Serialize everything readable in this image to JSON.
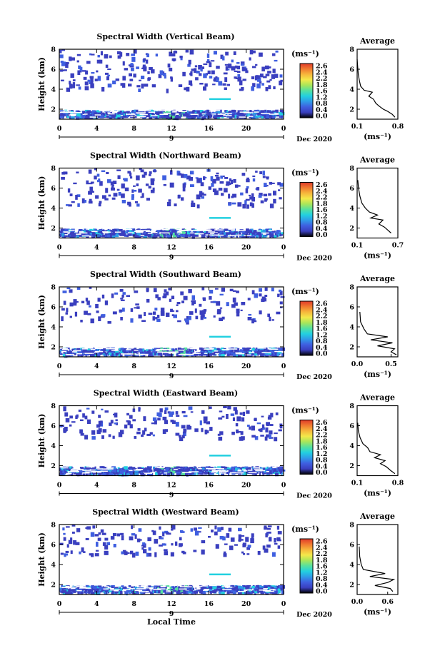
{
  "figure": {
    "xlabel": "Local Time",
    "date_day": "9",
    "date_label": "Dec 2020",
    "unit_label": "(ms⁻¹)",
    "avg_title": "Average",
    "ylabel": "Height (km)"
  },
  "colorbar": {
    "ticks": [
      "2.6",
      "2.4",
      "2.2",
      "1.8",
      "1.6",
      "1.2",
      "0.8",
      "0.4",
      "0.0"
    ],
    "range": [
      0.0,
      2.8
    ],
    "colors": [
      "#000000",
      "#3a3fbf",
      "#3f5fe0",
      "#2f9be8",
      "#22d0e0",
      "#55e0a0",
      "#a8e65a",
      "#f3e94a",
      "#f6b73c",
      "#f07a30",
      "#e03a2a"
    ]
  },
  "chart_data": [
    {
      "type": "heatmap",
      "title": "Spectral Width (Vertical Beam)",
      "xlabel": "Local Time",
      "ylabel": "Height (km)",
      "x_ticks": [
        "0",
        "4",
        "8",
        "12",
        "16",
        "20",
        "0"
      ],
      "xlim": [
        0,
        24
      ],
      "y_ticks": [
        "2",
        "4",
        "6",
        "8"
      ],
      "ylim": [
        1,
        8
      ],
      "avg_profile": {
        "title": "Average",
        "xlabel": "(ms⁻¹)",
        "x_ticks": [
          "0.1",
          "0.8"
        ],
        "xlim": [
          0.1,
          0.8
        ],
        "y_ticks": [
          "2",
          "4",
          "6",
          "8"
        ],
        "ylim": [
          1,
          8
        ],
        "points": [
          [
            0.75,
            1.2
          ],
          [
            0.7,
            1.5
          ],
          [
            0.62,
            1.8
          ],
          [
            0.55,
            2.0
          ],
          [
            0.48,
            2.3
          ],
          [
            0.42,
            2.6
          ],
          [
            0.38,
            3.0
          ],
          [
            0.3,
            3.3
          ],
          [
            0.36,
            3.7
          ],
          [
            0.22,
            3.9
          ],
          [
            0.16,
            4.3
          ],
          [
            0.14,
            4.8
          ],
          [
            0.12,
            5.5
          ],
          [
            0.11,
            6.2
          ],
          [
            0.1,
            7.0
          ]
        ]
      }
    },
    {
      "type": "heatmap",
      "title": "Spectral Width (Northward Beam)",
      "xlabel": "Local Time",
      "ylabel": "Height (km)",
      "x_ticks": [
        "0",
        "4",
        "8",
        "12",
        "16",
        "20",
        "0"
      ],
      "xlim": [
        0,
        24
      ],
      "y_ticks": [
        "2",
        "4",
        "6",
        "8"
      ],
      "ylim": [
        1,
        8
      ],
      "avg_profile": {
        "title": "Average",
        "xlabel": "(ms⁻¹)",
        "x_ticks": [
          "0.1",
          "0.7"
        ],
        "xlim": [
          0.1,
          0.7
        ],
        "y_ticks": [
          "2",
          "4",
          "6",
          "8"
        ],
        "ylim": [
          1,
          8
        ],
        "points": [
          [
            0.6,
            1.5
          ],
          [
            0.55,
            1.8
          ],
          [
            0.5,
            2.1
          ],
          [
            0.42,
            2.4
          ],
          [
            0.48,
            2.8
          ],
          [
            0.3,
            3.0
          ],
          [
            0.4,
            3.3
          ],
          [
            0.28,
            3.6
          ],
          [
            0.22,
            4.0
          ],
          [
            0.17,
            4.5
          ],
          [
            0.14,
            5.2
          ],
          [
            0.12,
            6.0
          ],
          [
            0.11,
            6.8
          ]
        ]
      }
    },
    {
      "type": "heatmap",
      "title": "Spectral Width (Southward Beam)",
      "xlabel": "Local Time",
      "ylabel": "Height (km)",
      "x_ticks": [
        "0",
        "4",
        "8",
        "12",
        "16",
        "20",
        "0"
      ],
      "xlim": [
        0,
        24
      ],
      "y_ticks": [
        "2",
        "4",
        "6",
        "8"
      ],
      "ylim": [
        1,
        8
      ],
      "avg_profile": {
        "title": "Average",
        "xlabel": "(ms⁻¹)",
        "x_ticks": [
          "0.0",
          "0.5"
        ],
        "xlim": [
          0.0,
          0.6
        ],
        "y_ticks": [
          "2",
          "4",
          "6",
          "8"
        ],
        "ylim": [
          1,
          8
        ],
        "points": [
          [
            0.58,
            1.2
          ],
          [
            0.5,
            1.5
          ],
          [
            0.55,
            1.8
          ],
          [
            0.3,
            2.1
          ],
          [
            0.52,
            2.4
          ],
          [
            0.2,
            2.7
          ],
          [
            0.45,
            3.0
          ],
          [
            0.15,
            3.3
          ],
          [
            0.1,
            3.8
          ],
          [
            0.05,
            4.5
          ],
          [
            0.04,
            5.5
          ]
        ]
      }
    },
    {
      "type": "heatmap",
      "title": "Spectral Width (Eastward Beam)",
      "xlabel": "Local Time",
      "ylabel": "Height (km)",
      "x_ticks": [
        "0",
        "4",
        "8",
        "12",
        "16",
        "20",
        "0"
      ],
      "xlim": [
        0,
        24
      ],
      "y_ticks": [
        "2",
        "4",
        "6",
        "8"
      ],
      "ylim": [
        1,
        8
      ],
      "avg_profile": {
        "title": "Average",
        "xlabel": "(ms⁻¹)",
        "x_ticks": [
          "0.1",
          "0.8"
        ],
        "xlim": [
          0.1,
          0.8
        ],
        "y_ticks": [
          "2",
          "4",
          "6",
          "8"
        ],
        "ylim": [
          1,
          8
        ],
        "points": [
          [
            0.75,
            1.2
          ],
          [
            0.68,
            1.5
          ],
          [
            0.6,
            1.9
          ],
          [
            0.5,
            2.2
          ],
          [
            0.58,
            2.5
          ],
          [
            0.4,
            2.8
          ],
          [
            0.5,
            3.1
          ],
          [
            0.32,
            3.4
          ],
          [
            0.28,
            3.8
          ],
          [
            0.2,
            4.2
          ],
          [
            0.15,
            4.8
          ],
          [
            0.12,
            5.5
          ],
          [
            0.11,
            6.3
          ]
        ]
      }
    },
    {
      "type": "heatmap",
      "title": "Spectral Width (Westward Beam)",
      "xlabel": "Local Time",
      "ylabel": "Height (km)",
      "x_ticks": [
        "0",
        "4",
        "8",
        "12",
        "16",
        "20",
        "0"
      ],
      "xlim": [
        0,
        24
      ],
      "y_ticks": [
        "2",
        "4",
        "6",
        "8"
      ],
      "ylim": [
        1,
        8
      ],
      "avg_profile": {
        "title": "Average",
        "xlabel": "(ms⁻¹)",
        "x_ticks": [
          "0.0",
          "0.6"
        ],
        "xlim": [
          0.0,
          0.8
        ],
        "y_ticks": [
          "2",
          "4",
          "6",
          "8"
        ],
        "ylim": [
          1,
          8
        ],
        "points": [
          [
            0.7,
            1.3
          ],
          [
            0.65,
            1.6
          ],
          [
            0.35,
            1.9
          ],
          [
            0.6,
            2.2
          ],
          [
            0.72,
            2.5
          ],
          [
            0.25,
            2.8
          ],
          [
            0.55,
            3.1
          ],
          [
            0.12,
            3.5
          ],
          [
            0.08,
            4.0
          ],
          [
            0.05,
            4.8
          ],
          [
            0.04,
            5.8
          ]
        ]
      }
    }
  ]
}
